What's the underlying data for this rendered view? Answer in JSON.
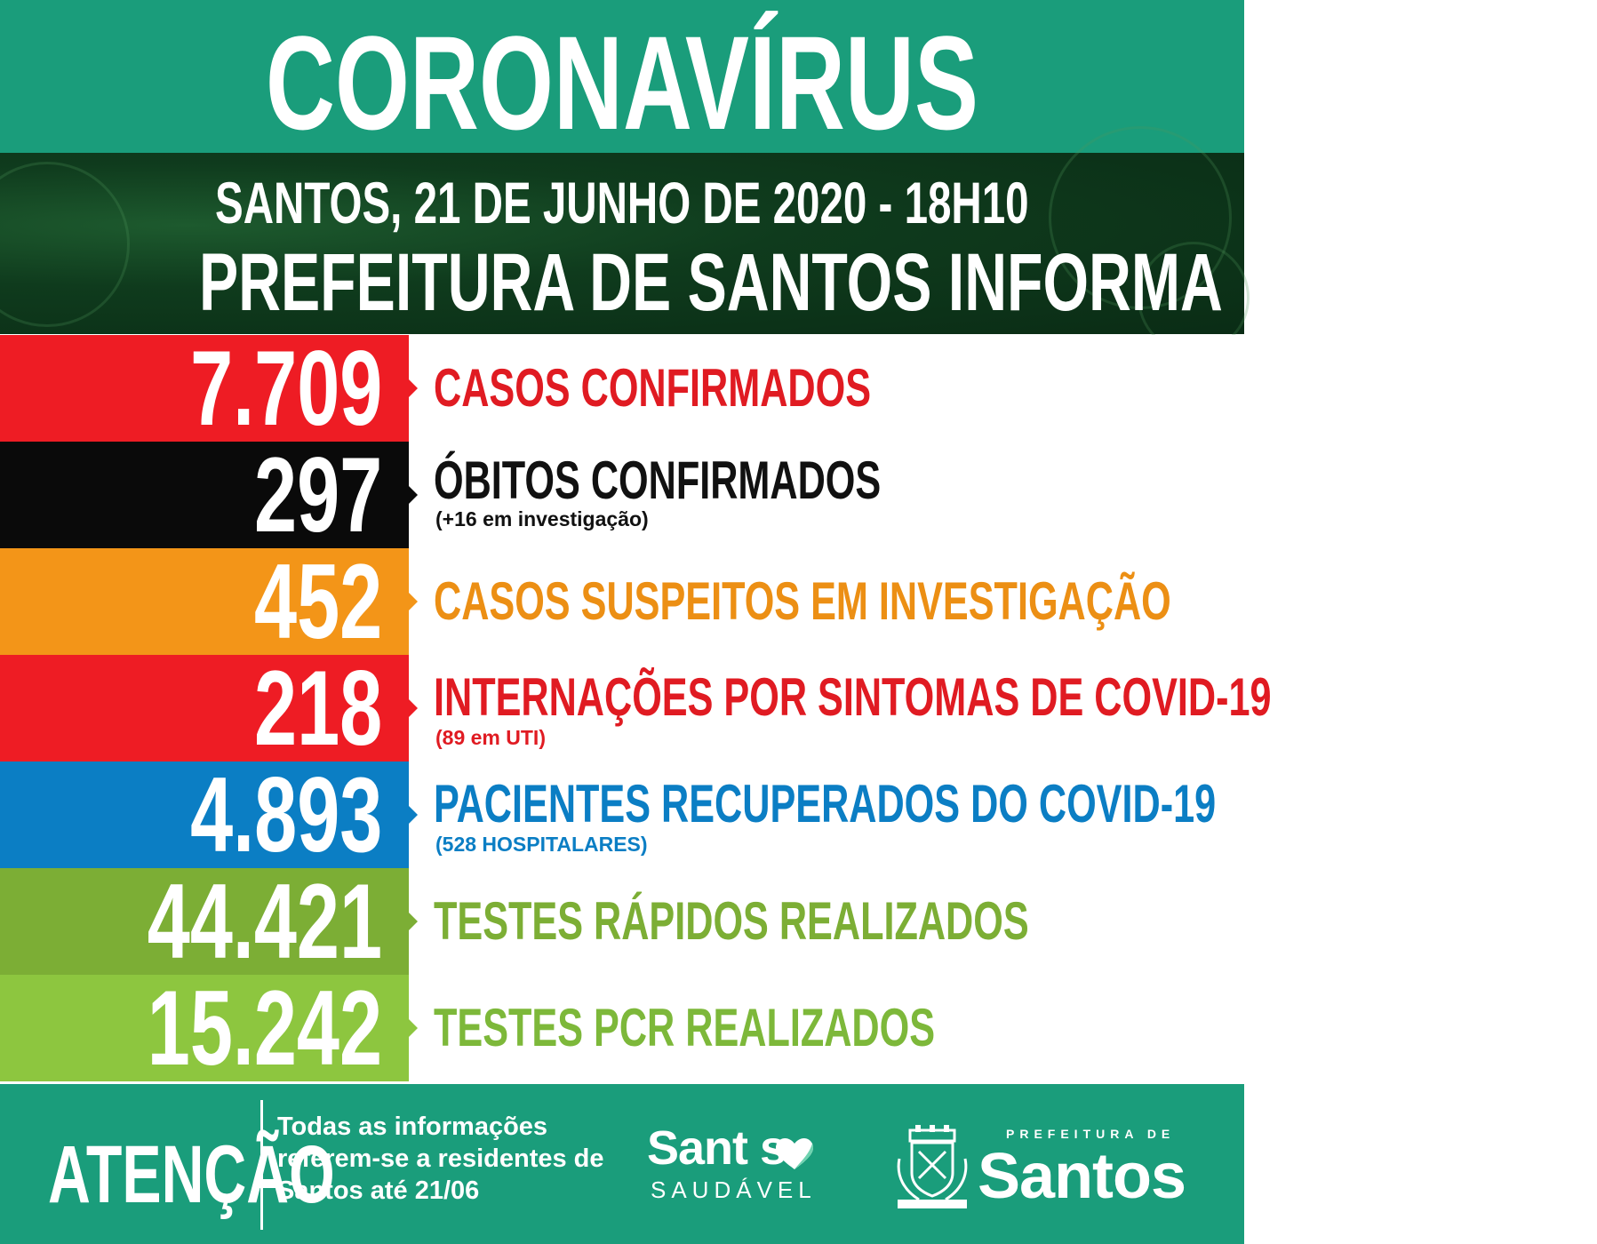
{
  "header": {
    "title": "CORONAVÍRUS"
  },
  "band": {
    "date_line": "SANTOS, 21 DE JUNHO DE 2020 - 18H10",
    "informa": "PREFEITURA DE SANTOS INFORMA"
  },
  "stats": [
    {
      "value": "7.709",
      "label": "CASOS CONFIRMADOS",
      "sub": "",
      "box_color": "#ee1c24",
      "label_color": "#e01b22"
    },
    {
      "value": "297",
      "label": "ÓBITOS CONFIRMADOS",
      "sub": "(+16 em investigação)",
      "box_color": "#0a0a0a",
      "label_color": "#111111"
    },
    {
      "value": "452",
      "label": "CASOS SUSPEITOS EM INVESTIGAÇÃO",
      "sub": "",
      "box_color": "#f39518",
      "label_color": "#ec8f14"
    },
    {
      "value": "218",
      "label": "INTERNAÇÕES POR SINTOMAS DE COVID-19",
      "sub": "(89 em UTI)",
      "box_color": "#ee1c24",
      "label_color": "#e01b22"
    },
    {
      "value": "4.893",
      "label": "PACIENTES RECUPERADOS DO COVID-19",
      "sub": "(528 HOSPITALARES)",
      "box_color": "#0b7ec4",
      "label_color": "#0b7ec4"
    },
    {
      "value": "44.421",
      "label": "TESTES RÁPIDOS REALIZADOS",
      "sub": "",
      "box_color": "#7cae35",
      "label_color": "#7cae35"
    },
    {
      "value": "15.242",
      "label": "TESTES PCR REALIZADOS",
      "sub": "",
      "box_color": "#8dc63f",
      "label_color": "#7db83a"
    }
  ],
  "footer": {
    "atencao": "ATENÇÃO",
    "info": "Todas as informações referem-se a residentes de Santos até 21/06",
    "saudavel_word": "Sant s",
    "saudavel_sub": "SAUDÁVEL",
    "prefeitura_small": "PREFEITURA DE",
    "prefeitura_big": "Santos"
  },
  "colors": {
    "teal": "#1a9d7b",
    "dark_green": "#0f3b1d"
  }
}
